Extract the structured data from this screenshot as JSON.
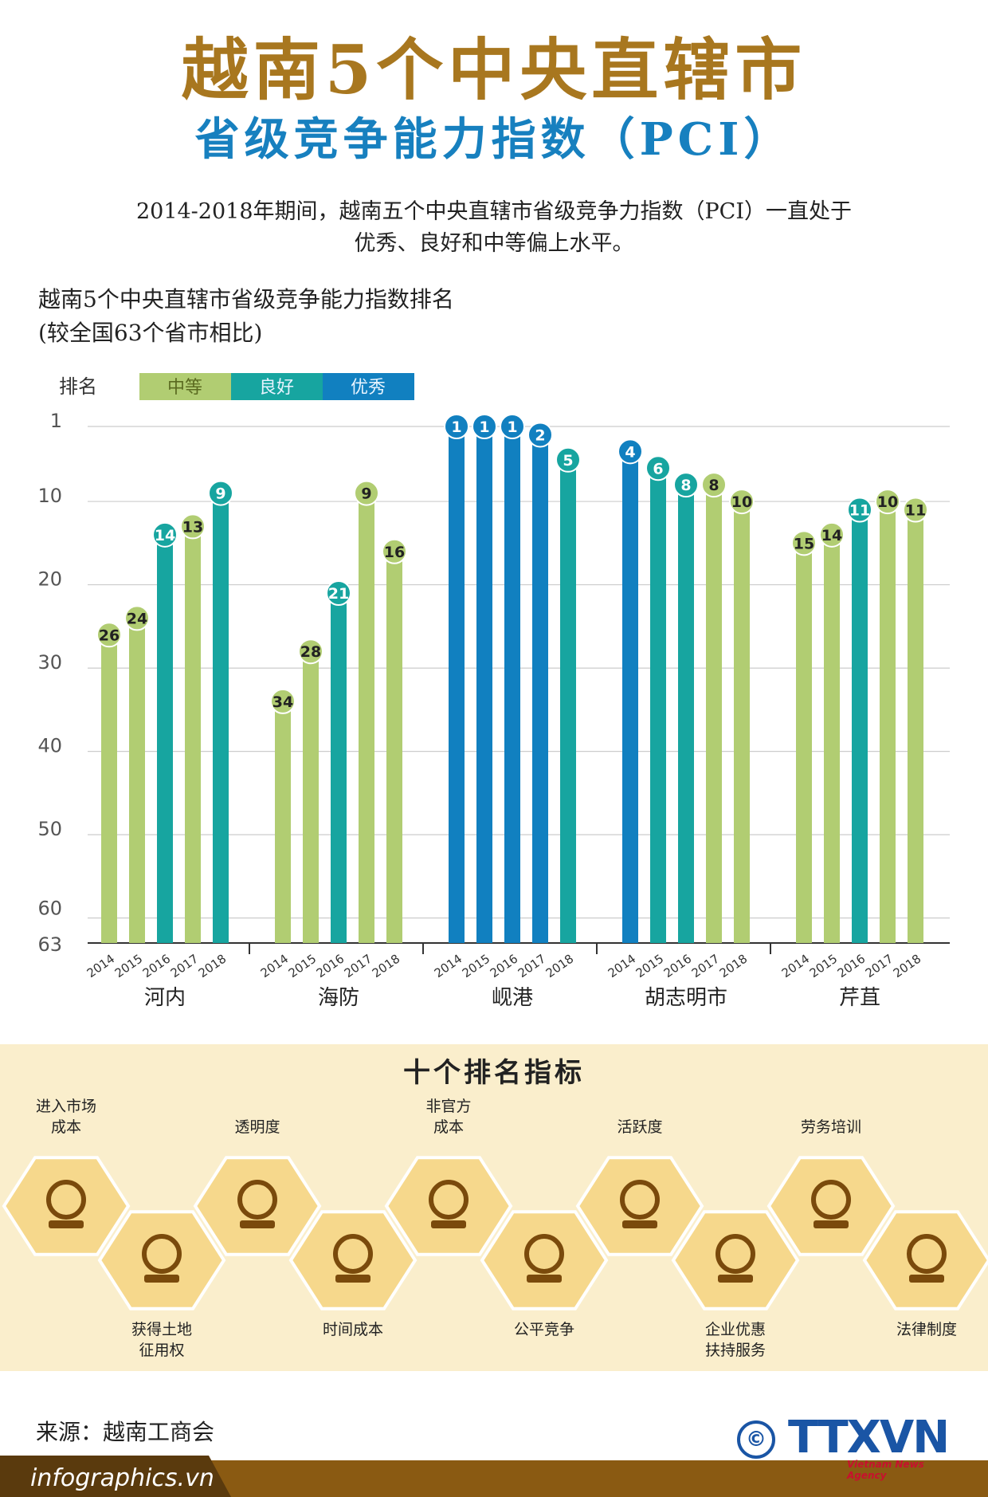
{
  "header": {
    "title": "越南5个中央直辖市",
    "subtitle": "省级竞争能力指数（PCI）",
    "intro_line1": "2014-2018年期间，越南五个中央直辖市省级竞争力指数（PCI）一直处于",
    "intro_line2": "优秀、良好和中等偏上水平。"
  },
  "chart_title": {
    "line1": "越南5个中央直辖市省级竞争能力指数排名",
    "line2": "(较全国63个省市相比)"
  },
  "chart_data": {
    "type": "bar",
    "ylabel": "排名",
    "y_reversed": true,
    "ylim": [
      1,
      63
    ],
    "y_ticks": [
      1,
      10,
      20,
      30,
      40,
      50,
      60,
      63
    ],
    "legend": [
      {
        "name": "中等",
        "color": "#b1cd72"
      },
      {
        "name": "良好",
        "color": "#17a5a0"
      },
      {
        "name": "优秀",
        "color": "#1180c0"
      }
    ],
    "legend_position": "top-left",
    "years": [
      "2014",
      "2015",
      "2016",
      "2017",
      "2018"
    ],
    "groups": [
      {
        "name": "河内",
        "ranks": [
          26,
          24,
          14,
          13,
          9
        ],
        "levels": [
          "中等",
          "中等",
          "良好",
          "中等",
          "良好"
        ]
      },
      {
        "name": "海防",
        "ranks": [
          34,
          28,
          21,
          9,
          16
        ],
        "levels": [
          "中等",
          "中等",
          "良好",
          "中等",
          "中等"
        ]
      },
      {
        "name": "岘港",
        "ranks": [
          1,
          1,
          1,
          2,
          5
        ],
        "levels": [
          "优秀",
          "优秀",
          "优秀",
          "优秀",
          "良好"
        ]
      },
      {
        "name": "胡志明市",
        "ranks": [
          4,
          6,
          8,
          8,
          10
        ],
        "levels": [
          "优秀",
          "良好",
          "良好",
          "中等",
          "中等"
        ]
      },
      {
        "name": "芹苴",
        "ranks": [
          15,
          14,
          11,
          10,
          11
        ],
        "levels": [
          "中等",
          "中等",
          "良好",
          "中等",
          "中等"
        ]
      }
    ],
    "grid": true
  },
  "indicators": {
    "title": "十个排名指标",
    "items": [
      {
        "label": "进入市场\n成本",
        "icon": "market-entry-cost-icon"
      },
      {
        "label": "获得土地\n征用权",
        "icon": "land-access-icon"
      },
      {
        "label": "透明度",
        "icon": "transparency-icon"
      },
      {
        "label": "时间成本",
        "icon": "hourglass-icon"
      },
      {
        "label": "非官方\n成本",
        "icon": "money-stack-icon"
      },
      {
        "label": "公平竞争",
        "icon": "fair-competition-icon"
      },
      {
        "label": "活跃度",
        "icon": "lightbulb-brain-icon"
      },
      {
        "label": "企业优惠\n扶持服务",
        "icon": "business-support-icon"
      },
      {
        "label": "劳务培训",
        "icon": "labor-training-icon"
      },
      {
        "label": "法律制度",
        "icon": "legal-scales-icon"
      }
    ]
  },
  "footer": {
    "source": "来源：越南工商会",
    "site": "infographics.vn",
    "logo_copyright": "©",
    "logo_text": "TTXVN",
    "logo_sub": "Vietnam News Agency"
  },
  "colors": {
    "title_gold": "#a8771f",
    "title_blue": "#1780bf",
    "hex_fill": "#f6d88c",
    "hex_icon": "#7a4a0c",
    "band_bg": "#faeecc",
    "footer_brown": "#8a5a12"
  }
}
